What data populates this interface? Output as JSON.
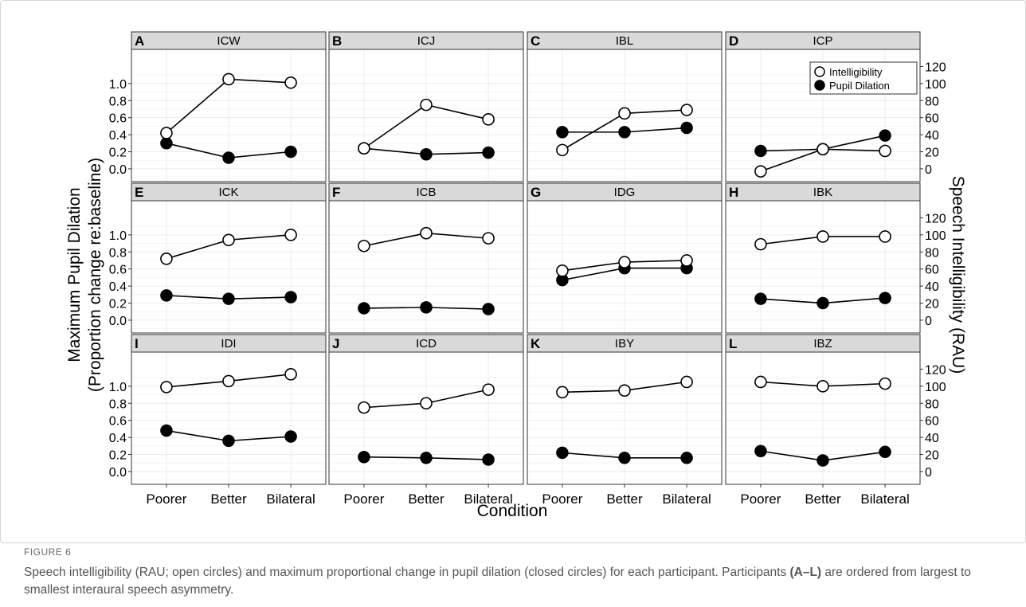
{
  "figure": {
    "label": "FIGURE 6",
    "caption_text": "Speech intelligibility (RAU; open circles) and maximum proportional change in pupil dilation (closed circles) for each participant. Participants ",
    "caption_bold": "(A–L)",
    "caption_tail": " are ordered from largest to smallest interaural speech asymmetry."
  },
  "chart_data": {
    "type": "line",
    "xlabel": "Condition",
    "ylabel_left": [
      "Maximum Pupil Dilation",
      "(Proportion change re:baseline)"
    ],
    "ylabel_right": "Speech Intelligibility (RAU)",
    "categories": [
      "Poorer",
      "Better",
      "Bilateral"
    ],
    "left_axis": {
      "ylim": [
        -0.15,
        1.4
      ],
      "ticks": [
        "0.0",
        "0.2",
        "0.4",
        "0.6",
        "0.8",
        "1.0"
      ]
    },
    "right_axis": {
      "ylim": [
        -15,
        140
      ],
      "ticks": [
        "0",
        "20",
        "40",
        "60",
        "80",
        "100",
        "120"
      ]
    },
    "grid": true,
    "legend": {
      "position": "top-right",
      "entries": [
        "Intelligibility",
        "Pupil Dilation"
      ]
    },
    "panels": [
      {
        "letter": "A",
        "name": "ICW",
        "intelligibility": [
          42,
          105,
          101
        ],
        "pupil": [
          0.3,
          0.13,
          0.2
        ]
      },
      {
        "letter": "B",
        "name": "ICJ",
        "intelligibility": [
          24,
          75,
          58
        ],
        "pupil": [
          0.24,
          0.17,
          0.19
        ]
      },
      {
        "letter": "C",
        "name": "IBL",
        "intelligibility": [
          22,
          65,
          69
        ],
        "pupil": [
          0.43,
          0.43,
          0.48
        ]
      },
      {
        "letter": "D",
        "name": "ICP",
        "intelligibility": [
          -3,
          23,
          21
        ],
        "pupil": [
          0.21,
          0.23,
          0.39
        ]
      },
      {
        "letter": "E",
        "name": "ICK",
        "intelligibility": [
          72,
          94,
          100
        ],
        "pupil": [
          0.29,
          0.25,
          0.27
        ]
      },
      {
        "letter": "F",
        "name": "ICB",
        "intelligibility": [
          87,
          102,
          96
        ],
        "pupil": [
          0.14,
          0.15,
          0.13
        ]
      },
      {
        "letter": "G",
        "name": "IDG",
        "intelligibility": [
          58,
          68,
          70
        ],
        "pupil": [
          0.47,
          0.61,
          0.61
        ]
      },
      {
        "letter": "H",
        "name": "IBK",
        "intelligibility": [
          89,
          98,
          98
        ],
        "pupil": [
          0.25,
          0.2,
          0.26
        ]
      },
      {
        "letter": "I",
        "name": "IDI",
        "intelligibility": [
          99,
          106,
          114
        ],
        "pupil": [
          0.48,
          0.36,
          0.41
        ]
      },
      {
        "letter": "J",
        "name": "ICD",
        "intelligibility": [
          75,
          80,
          96
        ],
        "pupil": [
          0.17,
          0.16,
          0.14
        ]
      },
      {
        "letter": "K",
        "name": "IBY",
        "intelligibility": [
          93,
          95,
          105
        ],
        "pupil": [
          0.22,
          0.16,
          0.16
        ]
      },
      {
        "letter": "L",
        "name": "IBZ",
        "intelligibility": [
          105,
          100,
          103
        ],
        "pupil": [
          0.24,
          0.13,
          0.23
        ]
      }
    ]
  },
  "colors": {
    "panel_bg": "#ffffff",
    "strip_bg": "#d9d9d9",
    "border": "#333333",
    "grid": "#ebebeb",
    "text": "#000000"
  }
}
